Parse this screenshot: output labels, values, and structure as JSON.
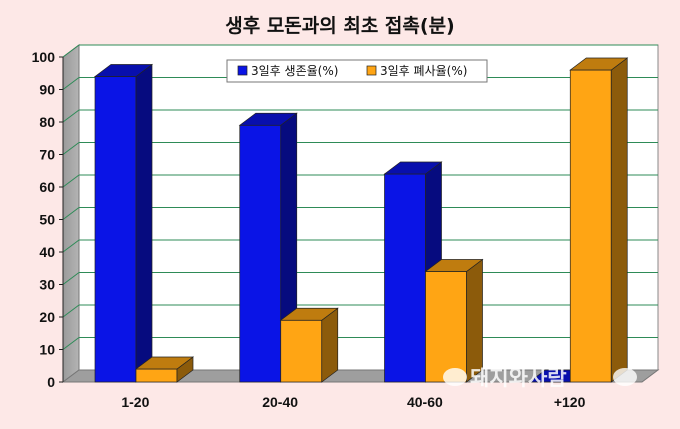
{
  "chart_data": {
    "type": "bar",
    "title": "생후 모돈과의 최초 접촉(분)",
    "categories": [
      "1-20",
      "20-40",
      "40-60",
      "+120"
    ],
    "series": [
      {
        "name": "3일후 생존율(%)",
        "values": [
          94,
          79,
          64,
          0
        ],
        "color": "#0a14e6"
      },
      {
        "name": "3일후 폐사율(%)",
        "values": [
          4,
          19,
          34,
          96
        ],
        "color": "#ffa514"
      }
    ],
    "ylim": [
      0,
      100
    ],
    "yticks": [
      0,
      10,
      20,
      30,
      40,
      50,
      60,
      70,
      80,
      90,
      100
    ],
    "grid": true,
    "legend_position": "top-center"
  },
  "watermark": {
    "text": "돼지와사람"
  }
}
